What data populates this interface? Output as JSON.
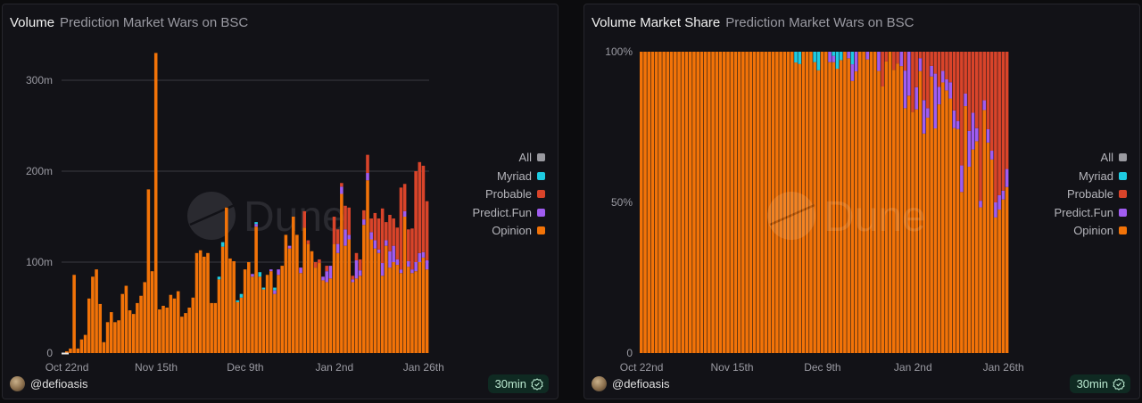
{
  "colors": {
    "all": "#9a9aa0",
    "myriad": "#1ecbe1",
    "probable": "#d9442a",
    "predict_fun": "#a05cf0",
    "opinion": "#f27308",
    "grid": "#3a3a42",
    "badge_bg": "#0f2a22"
  },
  "watermark": "Dune",
  "panels": [
    {
      "title": "Volume",
      "subtitle": "Prediction Market Wars on BSC",
      "user": "@defioasis",
      "refresh": "30min",
      "refresh_icon": "check-circle-icon"
    },
    {
      "title": "Volume Market Share",
      "subtitle": "Prediction Market Wars on BSC",
      "user": "@defioasis",
      "refresh": "30min",
      "refresh_icon": "check-circle-icon"
    }
  ],
  "legend": [
    {
      "name": "All",
      "key": "all"
    },
    {
      "name": "Myriad",
      "key": "myriad"
    },
    {
      "name": "Probable",
      "key": "probable"
    },
    {
      "name": "Predict.Fun",
      "key": "predict_fun"
    },
    {
      "name": "Opinion",
      "key": "opinion"
    }
  ],
  "chart_data": [
    {
      "type": "bar",
      "stacked": true,
      "title": "Volume",
      "subtitle": "Prediction Market Wars on BSC",
      "xlabel": "",
      "ylabel": "",
      "ylim": [
        0,
        330
      ],
      "yticks": [
        0,
        100,
        200,
        300
      ],
      "ytick_labels": [
        "0",
        "100m",
        "200m",
        "300m"
      ],
      "xtick_labels": [
        "Oct 22nd",
        "Nov 15th",
        "Dec 9th",
        "Jan 2nd",
        "Jan 26th"
      ],
      "xtick_index": [
        0,
        24,
        48,
        72,
        96
      ],
      "x_start": "Oct 22nd",
      "grid": true,
      "legend_position": "right",
      "units": "USD millions",
      "series": [
        {
          "name": "Opinion",
          "key": "opinion",
          "values": [
            2,
            5,
            86,
            5,
            15,
            20,
            60,
            84,
            92,
            54,
            12,
            34,
            45,
            34,
            36,
            65,
            74,
            47,
            43,
            55,
            63,
            78,
            180,
            90,
            330,
            48,
            52,
            50,
            64,
            60,
            68,
            40,
            44,
            50,
            61,
            110,
            113,
            106,
            110,
            55,
            55,
            81,
            117,
            160,
            104,
            101,
            56,
            61,
            92,
            100,
            84,
            139,
            84,
            70,
            86,
            90,
            65,
            86,
            96,
            130,
            115,
            150,
            130,
            88,
            138,
            120,
            112,
            94,
            99,
            80,
            78,
            82,
            120,
            110,
            175,
            118,
            125,
            78,
            82,
            85,
            141,
            190,
            125,
            115,
            110,
            85,
            118,
            94,
            100,
            97,
            88,
            150,
            95,
            88,
            90,
            100,
            105,
            92
          ]
        },
        {
          "name": "Predict.Fun",
          "key": "predict_fun",
          "values": [
            0,
            0,
            0,
            0,
            0,
            0,
            0,
            0,
            0,
            0,
            0,
            0,
            0,
            0,
            0,
            0,
            0,
            0,
            0,
            0,
            0,
            0,
            0,
            0,
            0,
            0,
            0,
            0,
            0,
            0,
            0,
            0,
            0,
            0,
            0,
            0,
            0,
            0,
            0,
            0,
            0,
            0,
            0,
            0,
            0,
            0,
            0,
            0,
            0,
            0,
            3,
            3,
            0,
            0,
            0,
            2,
            4,
            6,
            0,
            0,
            3,
            0,
            0,
            6,
            0,
            0,
            0,
            0,
            0,
            4,
            12,
            14,
            0,
            10,
            8,
            18,
            5,
            3,
            20,
            6,
            6,
            8,
            8,
            9,
            4,
            14,
            6,
            18,
            18,
            6,
            4,
            6,
            6,
            4,
            10,
            10,
            6,
            10
          ]
        },
        {
          "name": "Probable",
          "key": "probable",
          "values": [
            0,
            0,
            0,
            0,
            0,
            0,
            0,
            0,
            0,
            0,
            0,
            0,
            0,
            0,
            0,
            0,
            0,
            0,
            0,
            0,
            0,
            0,
            0,
            0,
            0,
            0,
            0,
            0,
            0,
            0,
            0,
            0,
            0,
            0,
            0,
            0,
            0,
            0,
            0,
            0,
            0,
            0,
            0,
            0,
            0,
            0,
            0,
            0,
            0,
            0,
            0,
            0,
            0,
            0,
            0,
            0,
            0,
            0,
            0,
            0,
            0,
            0,
            0,
            0,
            18,
            4,
            0,
            6,
            4,
            0,
            6,
            0,
            30,
            16,
            4,
            26,
            30,
            4,
            8,
            12,
            10,
            20,
            15,
            30,
            34,
            60,
            20,
            40,
            30,
            35,
            90,
            30,
            35,
            45,
            100,
            100,
            95,
            65
          ]
        },
        {
          "name": "Myriad",
          "key": "myriad",
          "values": [
            0,
            0,
            0,
            0,
            0,
            0,
            0,
            0,
            0,
            0,
            0,
            0,
            0,
            0,
            0,
            0,
            0,
            0,
            0,
            0,
            0,
            0,
            0,
            0,
            0,
            0,
            0,
            0,
            0,
            0,
            0,
            0,
            0,
            0,
            0,
            0,
            0,
            0,
            0,
            0,
            0,
            3,
            5,
            0,
            0,
            0,
            2,
            4,
            0,
            0,
            0,
            2,
            5,
            2,
            0,
            0,
            3,
            0,
            0,
            0,
            0,
            0,
            0,
            0,
            0,
            0,
            0,
            0,
            0,
            0,
            0,
            0,
            0,
            0,
            0,
            0,
            0,
            0,
            0,
            0,
            0,
            0,
            0,
            0,
            0,
            0,
            0,
            0,
            0,
            0,
            0,
            0,
            0,
            0,
            0,
            0,
            0,
            0
          ]
        }
      ]
    },
    {
      "type": "bar",
      "stacked": true,
      "normalized": true,
      "title": "Volume Market Share",
      "subtitle": "Prediction Market Wars on BSC",
      "ylim": [
        0,
        100
      ],
      "yticks": [
        0,
        50,
        100
      ],
      "ytick_labels": [
        "0",
        "50%",
        "100%"
      ],
      "xtick_labels": [
        "Oct 22nd",
        "Nov 15th",
        "Dec 9th",
        "Jan 2nd",
        "Jan 26th"
      ],
      "xtick_index": [
        0,
        24,
        48,
        72,
        96
      ],
      "grid": false,
      "legend_position": "right",
      "units": "percent",
      "derived_from": "Volume"
    }
  ]
}
